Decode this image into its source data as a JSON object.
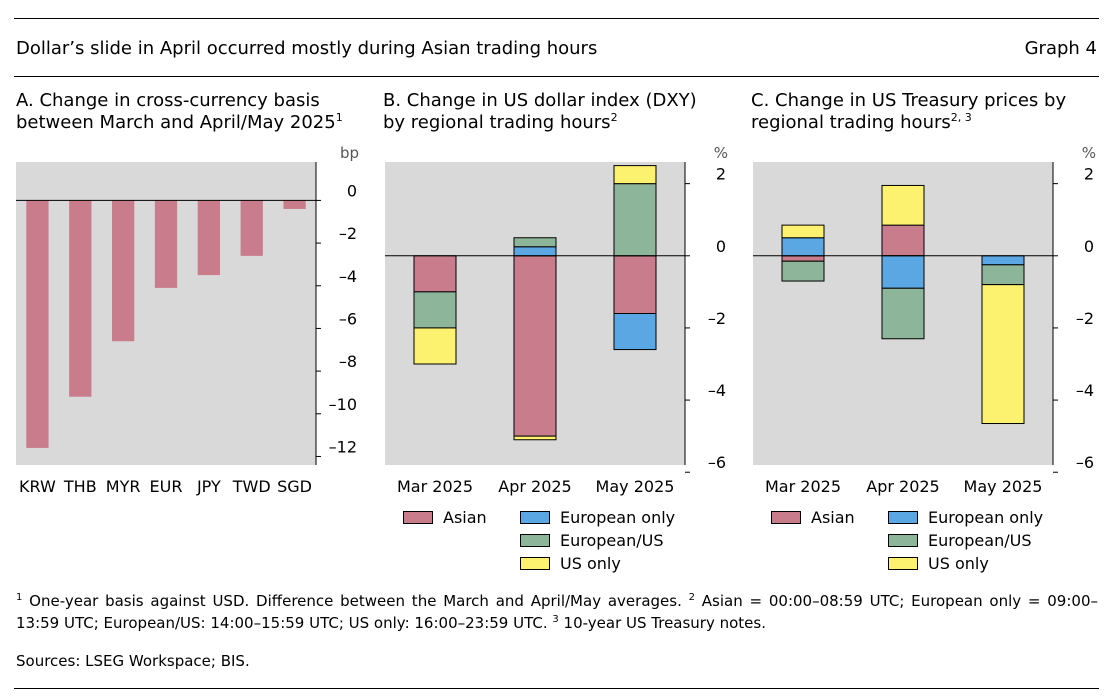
{
  "header": {
    "title": "Dollar’s slide in April occurred mostly during Asian trading hours",
    "graph_label": "Graph 4"
  },
  "colors": {
    "asian": "#c97d8c",
    "european_only": "#5ba7e3",
    "european_us": "#8db59a",
    "us_only": "#fdf170",
    "bars_a": "#c97d8c",
    "plot_bg": "#d9d9d9"
  },
  "panels": {
    "a": {
      "title_line1": "A. Change in cross-currency basis",
      "title_line2": "between March and April/May 2025",
      "title_sup": "1"
    },
    "b": {
      "title_line1": "B. Change in US dollar index (DXY)",
      "title_line2": "by regional trading hours",
      "title_sup": "2"
    },
    "c": {
      "title_line1": "C. Change in US Treasury prices by",
      "title_line2": "regional trading hours",
      "title_sup": "2, 3"
    }
  },
  "legend": {
    "asian": "Asian",
    "european_only": "European only",
    "european_us": "European/US",
    "us_only": "US only"
  },
  "chart_data": [
    {
      "type": "bar",
      "title": "A. Change in cross-currency basis between March and April/May 2025",
      "unit": "bp",
      "categories": [
        "KRW",
        "THB",
        "MYR",
        "EUR",
        "JPY",
        "TWD",
        "SGD"
      ],
      "values": [
        -11.6,
        -9.2,
        -6.6,
        -4.1,
        -3.5,
        -2.6,
        -0.4
      ],
      "ylim": [
        -12.4,
        1.8
      ],
      "yticks": [
        0,
        -2,
        -4,
        -6,
        -8,
        -10,
        -12
      ],
      "ytick_labels": [
        "0",
        "–2",
        "–4",
        "–6",
        "–8",
        "–10",
        "–12"
      ],
      "grid": false
    },
    {
      "type": "stacked_bar",
      "title": "B. Change in US dollar index (DXY) by regional trading hours",
      "unit": "%",
      "categories": [
        "Mar 2025",
        "Apr 2025",
        "May 2025"
      ],
      "series": [
        {
          "name": "Asian",
          "key": "asian",
          "values": [
            -1.0,
            -5.0,
            -1.6
          ]
        },
        {
          "name": "European only",
          "key": "european_only",
          "values": [
            0.0,
            0.25,
            -1.0
          ]
        },
        {
          "name": "European/US",
          "key": "european_us",
          "values": [
            -1.0,
            0.25,
            2.0
          ]
        },
        {
          "name": "US only",
          "key": "us_only",
          "values": [
            -1.0,
            -0.1,
            0.5
          ]
        }
      ],
      "ylim": [
        -5.8,
        2.6
      ],
      "yticks": [
        2,
        0,
        -2,
        -4,
        -6
      ],
      "ytick_labels": [
        "2",
        "0",
        "–2",
        "–4",
        "–6"
      ]
    },
    {
      "type": "stacked_bar",
      "title": "C. Change in US Treasury prices by regional trading hours",
      "unit": "%",
      "categories": [
        "Mar 2025",
        "Apr 2025",
        "May 2025"
      ],
      "series": [
        {
          "name": "Asian",
          "key": "asian",
          "values": [
            -0.15,
            0.85,
            0.0
          ]
        },
        {
          "name": "European only",
          "key": "european_only",
          "values": [
            0.5,
            -0.9,
            -0.25
          ]
        },
        {
          "name": "European/US",
          "key": "european_us",
          "values": [
            -0.55,
            -1.4,
            -0.55
          ]
        },
        {
          "name": "US only",
          "key": "us_only",
          "values": [
            0.35,
            1.1,
            -3.85
          ]
        }
      ],
      "ylim": [
        -5.8,
        2.6
      ],
      "yticks": [
        2,
        0,
        -2,
        -4,
        -6
      ],
      "ytick_labels": [
        "2",
        "0",
        "–2",
        "–4",
        "–6"
      ]
    }
  ],
  "notes": {
    "n1_sup": "1",
    "n1_text": " One-year basis against USD. Difference between the March and April/May averages. ",
    "n2_sup": "2",
    "n2_text": " Asian = 00:00–08:59 UTC; European only = 09:00–13:59 UTC; European/US: 14:00–15:59 UTC; US only: 16:00–23:59 UTC. ",
    "n3_sup": "3",
    "n3_text": " 10-year US Treasury notes."
  },
  "sources": "Sources: LSEG Workspace; BIS."
}
